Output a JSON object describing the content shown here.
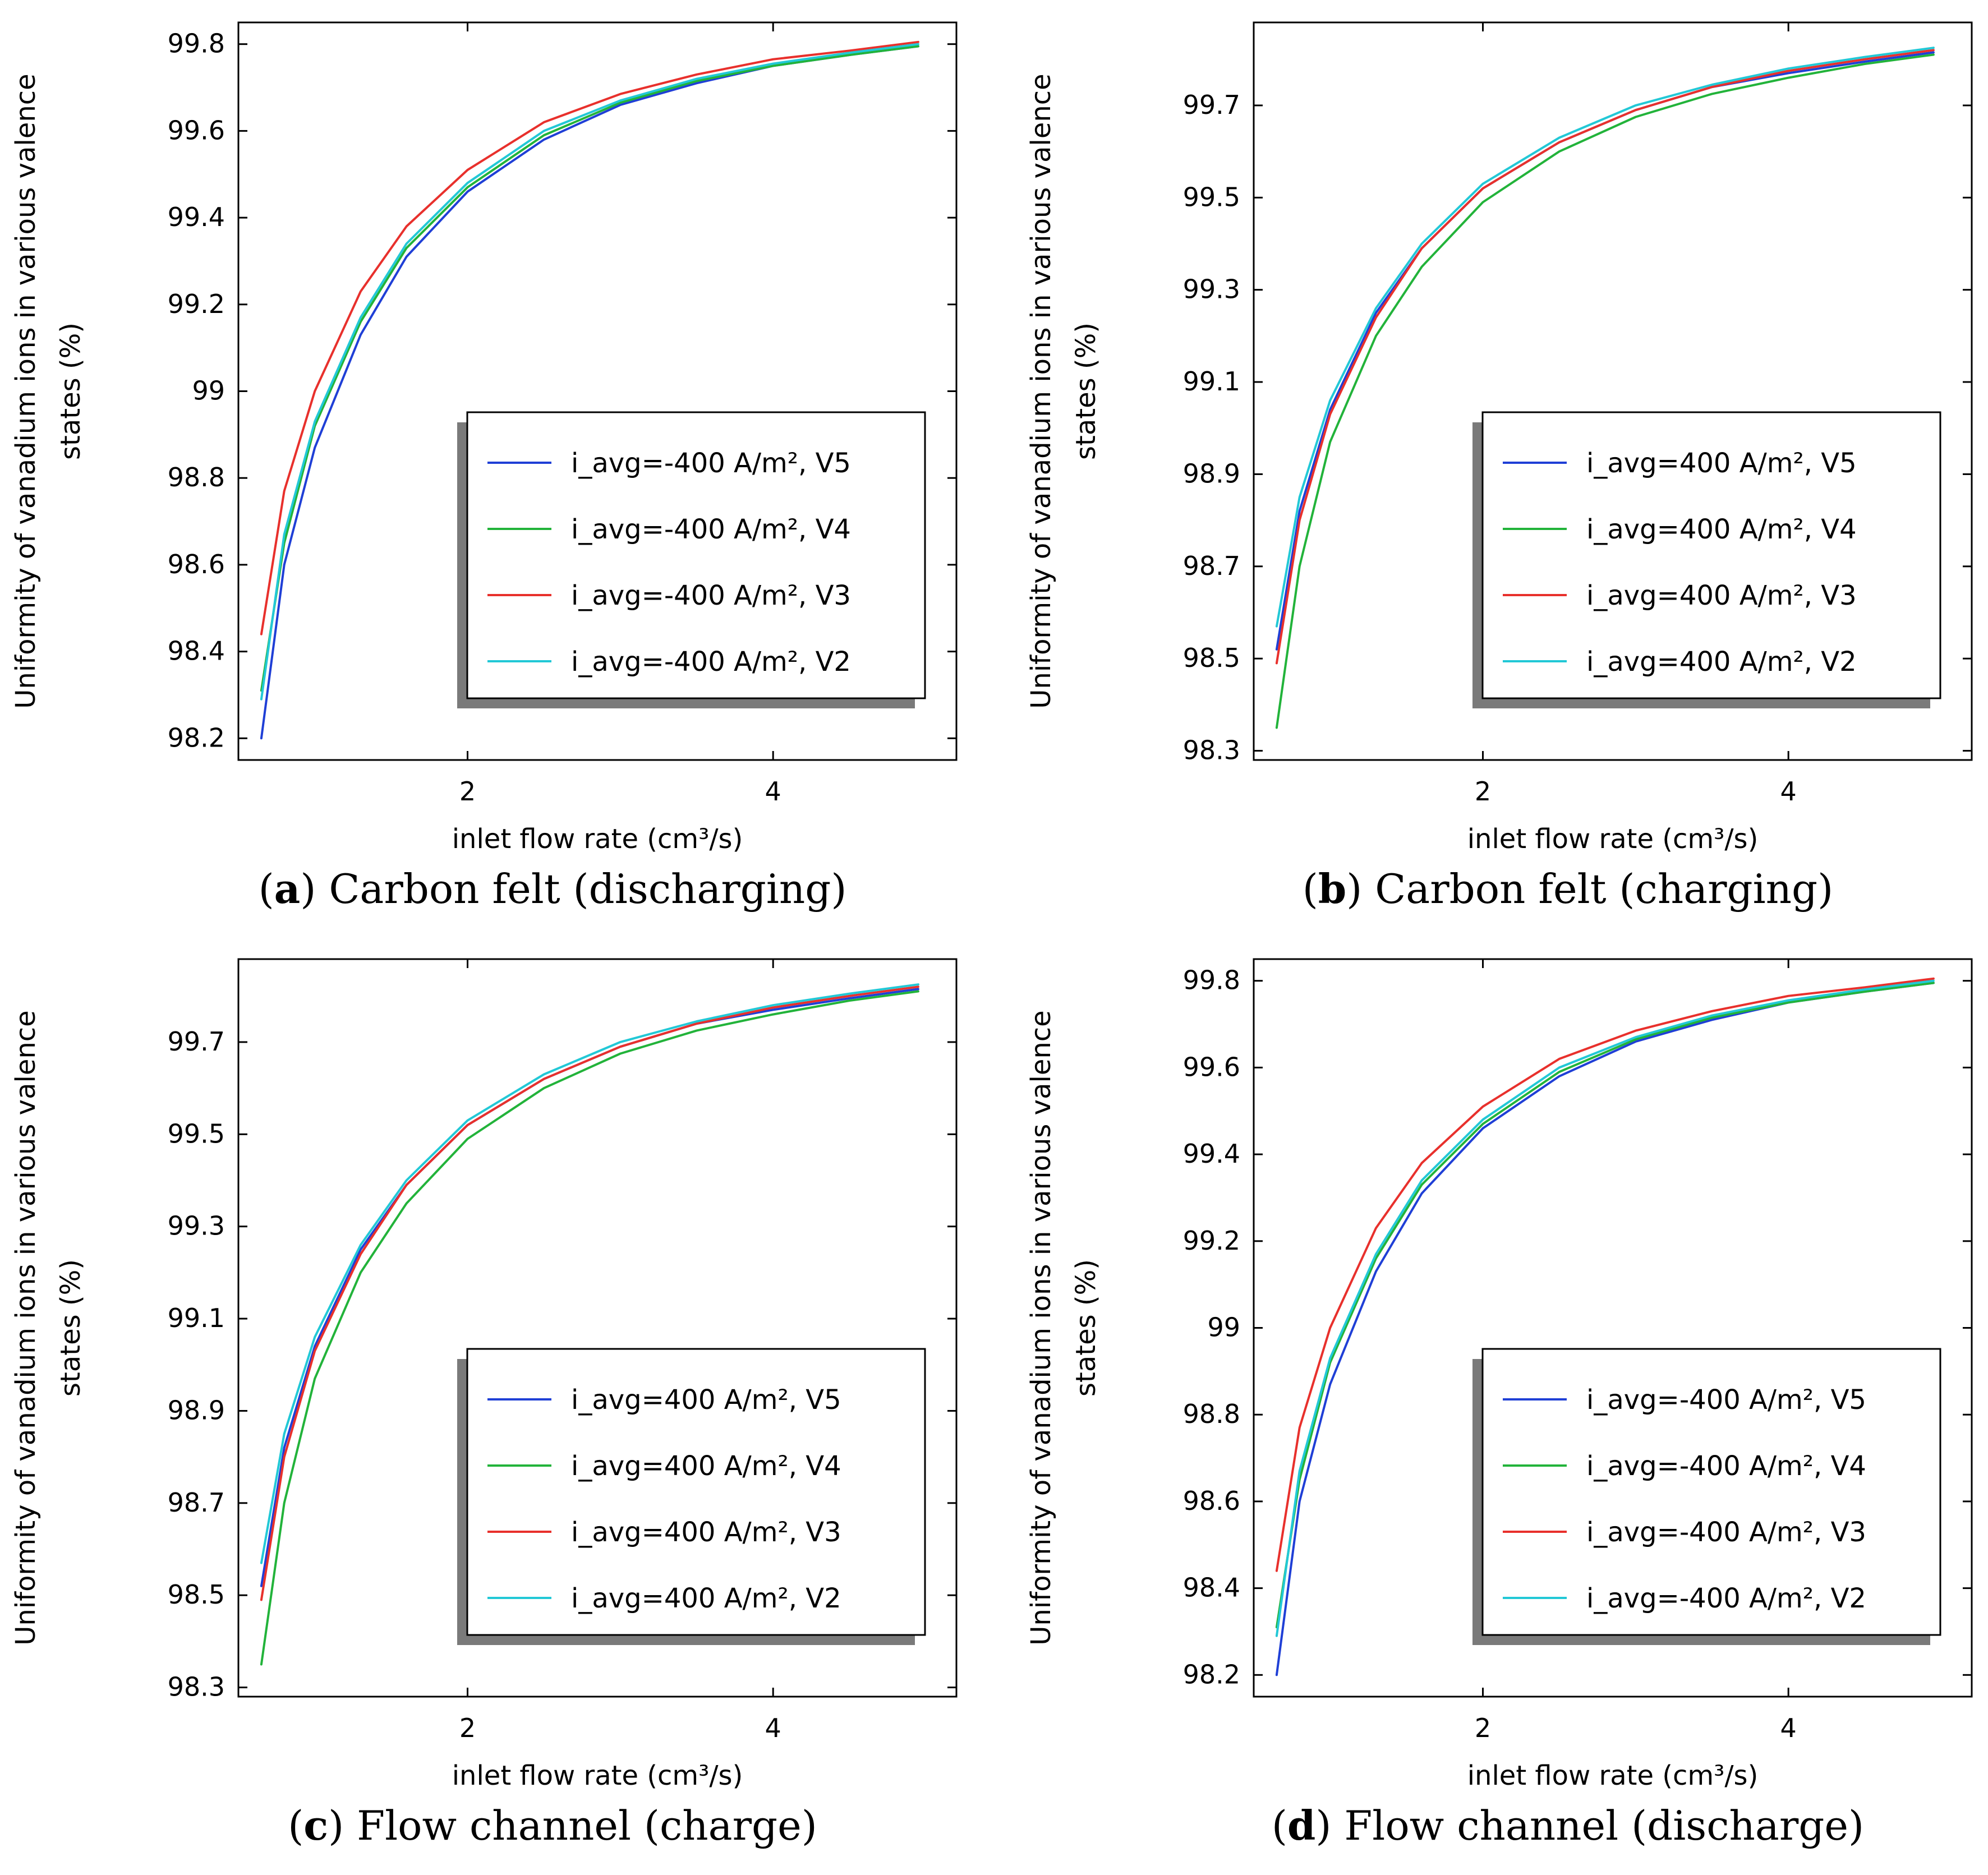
{
  "figure": {
    "panels": [
      {
        "id": "a",
        "caption_label": "a",
        "caption_text": "Carbon felt (discharging)",
        "chart_data": {
          "type": "line",
          "title": "",
          "xlabel": "inlet flow rate (cm³/s)",
          "ylabel_line1": "Uniformity of vanadium ions in various valence",
          "ylabel_line2": "states (%)",
          "xlim": [
            0.5,
            5.2
          ],
          "ylim": [
            98.15,
            99.85
          ],
          "xticks": [
            2,
            4
          ],
          "xtick_labels": [
            "2",
            "4"
          ],
          "yticks": [
            98.2,
            98.4,
            98.6,
            98.8,
            99.0,
            99.2,
            99.4,
            99.6,
            99.8
          ],
          "ytick_labels": [
            "98.2",
            "98.4",
            "98.6",
            "98.8",
            "99",
            "99.2",
            "99.4",
            "99.6",
            "99.8"
          ],
          "legend": "center-right",
          "grid": false,
          "series": [
            {
              "name": "i_avg=-400 A/m², V5",
              "color": "#1f3fd6",
              "x": [
                0.65,
                0.8,
                1.0,
                1.3,
                1.6,
                2.0,
                2.5,
                3.0,
                3.5,
                4.0,
                4.5,
                4.95
              ],
              "y": [
                98.2,
                98.6,
                98.87,
                99.13,
                99.31,
                99.46,
                99.58,
                99.66,
                99.71,
                99.75,
                99.775,
                99.795
              ]
            },
            {
              "name": "i_avg=-400 A/m², V4",
              "color": "#22b33a",
              "x": [
                0.65,
                0.8,
                1.0,
                1.3,
                1.6,
                2.0,
                2.5,
                3.0,
                3.5,
                4.0,
                4.5,
                4.95
              ],
              "y": [
                98.31,
                98.65,
                98.92,
                99.16,
                99.33,
                99.47,
                99.59,
                99.665,
                99.715,
                99.75,
                99.775,
                99.795
              ]
            },
            {
              "name": "i_avg=-400 A/m², V3",
              "color": "#e8302c",
              "x": [
                0.65,
                0.8,
                1.0,
                1.3,
                1.6,
                2.0,
                2.5,
                3.0,
                3.5,
                4.0,
                4.5,
                4.95
              ],
              "y": [
                98.44,
                98.77,
                99.0,
                99.23,
                99.38,
                99.51,
                99.62,
                99.685,
                99.73,
                99.765,
                99.785,
                99.805
              ]
            },
            {
              "name": "i_avg=-400 A/m², V2",
              "color": "#22c8d6",
              "x": [
                0.65,
                0.8,
                1.0,
                1.3,
                1.6,
                2.0,
                2.5,
                3.0,
                3.5,
                4.0,
                4.5,
                4.95
              ],
              "y": [
                98.29,
                98.67,
                98.93,
                99.17,
                99.34,
                99.48,
                99.6,
                99.67,
                99.72,
                99.755,
                99.78,
                99.8
              ]
            }
          ]
        }
      },
      {
        "id": "b",
        "caption_label": "b",
        "caption_text": "Carbon felt (charging)",
        "chart_data": {
          "type": "line",
          "title": "",
          "xlabel": "inlet flow rate (cm³/s)",
          "ylabel_line1": "Uniformity of vanadium ions in various valence",
          "ylabel_line2": "states (%)",
          "xlim": [
            0.5,
            5.2
          ],
          "ylim": [
            98.28,
            99.88
          ],
          "xticks": [
            2,
            4
          ],
          "xtick_labels": [
            "2",
            "4"
          ],
          "yticks": [
            98.3,
            98.5,
            98.7,
            98.9,
            99.1,
            99.3,
            99.5,
            99.7
          ],
          "ytick_labels": [
            "98.3",
            "98.5",
            "98.7",
            "98.9",
            "99.1",
            "99.3",
            "99.5",
            "99.7"
          ],
          "legend": "center-right",
          "grid": false,
          "series": [
            {
              "name": "i_avg=400 A/m², V5",
              "color": "#1f3fd6",
              "x": [
                0.65,
                0.8,
                1.0,
                1.3,
                1.6,
                2.0,
                2.5,
                3.0,
                3.5,
                4.0,
                4.5,
                4.95
              ],
              "y": [
                98.52,
                98.82,
                99.04,
                99.25,
                99.39,
                99.52,
                99.62,
                99.69,
                99.74,
                99.77,
                99.795,
                99.815
              ]
            },
            {
              "name": "i_avg=400 A/m², V4",
              "color": "#22b33a",
              "x": [
                0.65,
                0.8,
                1.0,
                1.3,
                1.6,
                2.0,
                2.5,
                3.0,
                3.5,
                4.0,
                4.5,
                4.95
              ],
              "y": [
                98.35,
                98.7,
                98.97,
                99.2,
                99.35,
                99.49,
                99.6,
                99.675,
                99.725,
                99.76,
                99.79,
                99.81
              ]
            },
            {
              "name": "i_avg=400 A/m², V3",
              "color": "#e8302c",
              "x": [
                0.65,
                0.8,
                1.0,
                1.3,
                1.6,
                2.0,
                2.5,
                3.0,
                3.5,
                4.0,
                4.5,
                4.95
              ],
              "y": [
                98.49,
                98.8,
                99.03,
                99.24,
                99.39,
                99.52,
                99.62,
                99.69,
                99.74,
                99.775,
                99.8,
                99.82
              ]
            },
            {
              "name": "i_avg=400 A/m², V2",
              "color": "#22c8d6",
              "x": [
                0.65,
                0.8,
                1.0,
                1.3,
                1.6,
                2.0,
                2.5,
                3.0,
                3.5,
                4.0,
                4.5,
                4.95
              ],
              "y": [
                98.57,
                98.85,
                99.06,
                99.26,
                99.4,
                99.53,
                99.63,
                99.7,
                99.745,
                99.78,
                99.805,
                99.825
              ]
            }
          ]
        }
      },
      {
        "id": "c",
        "caption_label": "c",
        "caption_text": "Flow channel (charge)",
        "chart_data": {
          "type": "line",
          "title": "",
          "xlabel": "inlet flow rate (cm³/s)",
          "ylabel_line1": "Uniformity of vanadium ions in various valence",
          "ylabel_line2": "states (%)",
          "xlim": [
            0.5,
            5.2
          ],
          "ylim": [
            98.28,
            99.88
          ],
          "xticks": [
            2,
            4
          ],
          "xtick_labels": [
            "2",
            "4"
          ],
          "yticks": [
            98.3,
            98.5,
            98.7,
            98.9,
            99.1,
            99.3,
            99.5,
            99.7
          ],
          "ytick_labels": [
            "98.3",
            "98.5",
            "98.7",
            "98.9",
            "99.1",
            "99.3",
            "99.5",
            "99.7"
          ],
          "legend": "center-right",
          "grid": false,
          "series": [
            {
              "name": "i_avg=400 A/m², V5",
              "color": "#1f3fd6",
              "x": [
                0.65,
                0.8,
                1.0,
                1.3,
                1.6,
                2.0,
                2.5,
                3.0,
                3.5,
                4.0,
                4.5,
                4.95
              ],
              "y": [
                98.52,
                98.82,
                99.04,
                99.25,
                99.39,
                99.52,
                99.62,
                99.69,
                99.74,
                99.77,
                99.795,
                99.815
              ]
            },
            {
              "name": "i_avg=400 A/m², V4",
              "color": "#22b33a",
              "x": [
                0.65,
                0.8,
                1.0,
                1.3,
                1.6,
                2.0,
                2.5,
                3.0,
                3.5,
                4.0,
                4.5,
                4.95
              ],
              "y": [
                98.35,
                98.7,
                98.97,
                99.2,
                99.35,
                99.49,
                99.6,
                99.675,
                99.725,
                99.76,
                99.79,
                99.81
              ]
            },
            {
              "name": "i_avg=400 A/m², V3",
              "color": "#e8302c",
              "x": [
                0.65,
                0.8,
                1.0,
                1.3,
                1.6,
                2.0,
                2.5,
                3.0,
                3.5,
                4.0,
                4.5,
                4.95
              ],
              "y": [
                98.49,
                98.8,
                99.03,
                99.24,
                99.39,
                99.52,
                99.62,
                99.69,
                99.74,
                99.775,
                99.8,
                99.82
              ]
            },
            {
              "name": "i_avg=400 A/m², V2",
              "color": "#22c8d6",
              "x": [
                0.65,
                0.8,
                1.0,
                1.3,
                1.6,
                2.0,
                2.5,
                3.0,
                3.5,
                4.0,
                4.5,
                4.95
              ],
              "y": [
                98.57,
                98.85,
                99.06,
                99.26,
                99.4,
                99.53,
                99.63,
                99.7,
                99.745,
                99.78,
                99.805,
                99.825
              ]
            }
          ]
        }
      },
      {
        "id": "d",
        "caption_label": "d",
        "caption_text": "Flow channel (discharge)",
        "chart_data": {
          "type": "line",
          "title": "",
          "xlabel": "inlet flow rate (cm³/s)",
          "ylabel_line1": "Uniformity of vanadium ions in various valence",
          "ylabel_line2": "states (%)",
          "xlim": [
            0.5,
            5.2
          ],
          "ylim": [
            98.15,
            99.85
          ],
          "xticks": [
            2,
            4
          ],
          "xtick_labels": [
            "2",
            "4"
          ],
          "yticks": [
            98.2,
            98.4,
            98.6,
            98.8,
            99.0,
            99.2,
            99.4,
            99.6,
            99.8
          ],
          "ytick_labels": [
            "98.2",
            "98.4",
            "98.6",
            "98.8",
            "99",
            "99.2",
            "99.4",
            "99.6",
            "99.8"
          ],
          "legend": "center-right",
          "grid": false,
          "series": [
            {
              "name": "i_avg=-400 A/m², V5",
              "color": "#1f3fd6",
              "x": [
                0.65,
                0.8,
                1.0,
                1.3,
                1.6,
                2.0,
                2.5,
                3.0,
                3.5,
                4.0,
                4.5,
                4.95
              ],
              "y": [
                98.2,
                98.6,
                98.87,
                99.13,
                99.31,
                99.46,
                99.58,
                99.66,
                99.71,
                99.75,
                99.775,
                99.795
              ]
            },
            {
              "name": "i_avg=-400 A/m², V4",
              "color": "#22b33a",
              "x": [
                0.65,
                0.8,
                1.0,
                1.3,
                1.6,
                2.0,
                2.5,
                3.0,
                3.5,
                4.0,
                4.5,
                4.95
              ],
              "y": [
                98.31,
                98.65,
                98.92,
                99.16,
                99.33,
                99.47,
                99.59,
                99.665,
                99.715,
                99.75,
                99.775,
                99.795
              ]
            },
            {
              "name": "i_avg=-400 A/m², V3",
              "color": "#e8302c",
              "x": [
                0.65,
                0.8,
                1.0,
                1.3,
                1.6,
                2.0,
                2.5,
                3.0,
                3.5,
                4.0,
                4.5,
                4.95
              ],
              "y": [
                98.44,
                98.77,
                99.0,
                99.23,
                99.38,
                99.51,
                99.62,
                99.685,
                99.73,
                99.765,
                99.785,
                99.805
              ]
            },
            {
              "name": "i_avg=-400 A/m², V2",
              "color": "#22c8d6",
              "x": [
                0.65,
                0.8,
                1.0,
                1.3,
                1.6,
                2.0,
                2.5,
                3.0,
                3.5,
                4.0,
                4.5,
                4.95
              ],
              "y": [
                98.29,
                98.67,
                98.93,
                99.17,
                99.34,
                99.48,
                99.6,
                99.67,
                99.72,
                99.755,
                99.78,
                99.8
              ]
            }
          ]
        }
      }
    ]
  }
}
